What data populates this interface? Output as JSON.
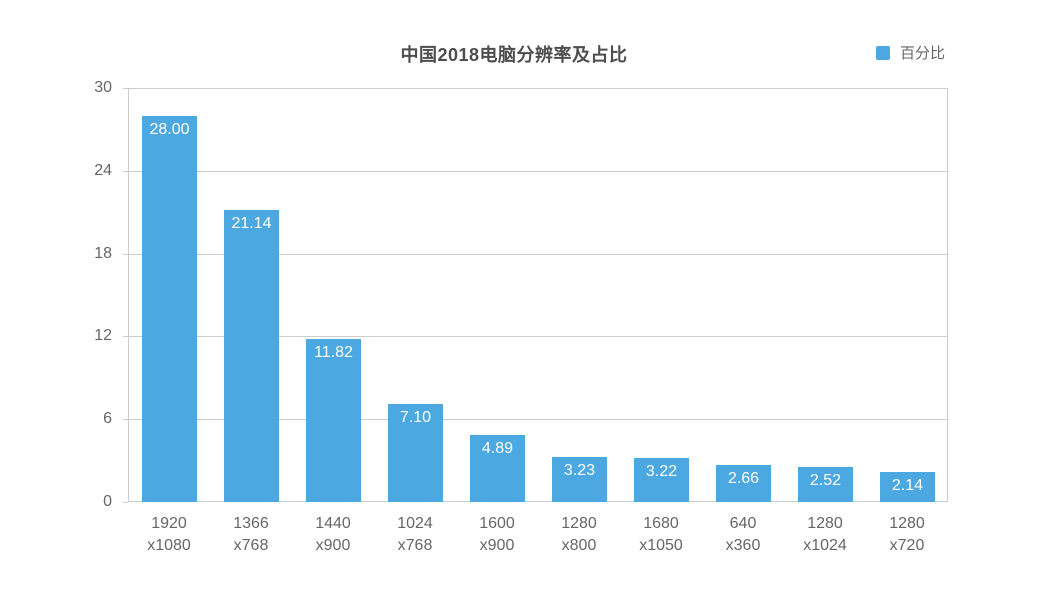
{
  "chart_data": {
    "type": "bar",
    "title": "中国2018电脑分辨率及占比",
    "legend": [
      "百分比"
    ],
    "legend_position": "top-right",
    "categories": [
      "1920\nx1080",
      "1366\nx768",
      "1440\nx900",
      "1024\nx768",
      "1600\nx900",
      "1280\nx800",
      "1680\nx1050",
      "640\nx360",
      "1280\nx1024",
      "1280\nx720"
    ],
    "values": [
      28.0,
      21.14,
      11.82,
      7.1,
      4.89,
      3.23,
      3.22,
      2.66,
      2.52,
      2.14
    ],
    "value_labels": [
      "28.00",
      "21.14",
      "11.82",
      "7.10",
      "4.89",
      "3.23",
      "3.22",
      "2.66",
      "2.52",
      "2.14"
    ],
    "xlabel": "",
    "ylabel": "",
    "ylim": [
      0,
      30
    ],
    "yticks": [
      0,
      6,
      12,
      18,
      24,
      30
    ],
    "ytick_labels": [
      "0",
      "6",
      "12",
      "18",
      "24",
      "30"
    ],
    "grid": true,
    "colors": {
      "bar": "#4CA8E0",
      "grid": "#CCCCCC",
      "axis_text": "#666666",
      "title_text": "#4D4D4D",
      "value_text": "#FFFFFF",
      "background": "#FFFFFF"
    }
  }
}
